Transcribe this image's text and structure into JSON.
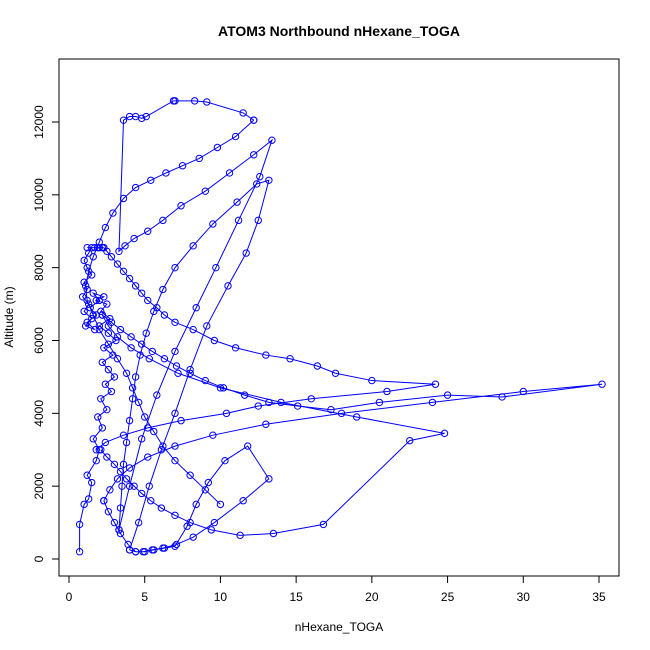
{
  "chart_data": {
    "type": "line",
    "title": "ATOM3 Northbound nHexane_TOGA",
    "xlabel": "nHexane_TOGA",
    "ylabel": "Altitude (m)",
    "xlim": [
      0,
      36
    ],
    "ylim": [
      0,
      12600
    ],
    "x_ticks": [
      0,
      5,
      10,
      15,
      20,
      25,
      30,
      35
    ],
    "y_ticks": [
      0,
      2000,
      4000,
      6000,
      8000,
      10000,
      12000
    ],
    "grid": false,
    "legend": "none",
    "color": "#0000ff",
    "markers": "open-circle",
    "series": [
      {
        "x": [
          0.7,
          0.7,
          1.0,
          1.3,
          1.5,
          1.2,
          1.8,
          2.0,
          1.6,
          2.2,
          1.9,
          2.5,
          2.1,
          2.8,
          2.4,
          3.0,
          2.6,
          2.2,
          2.9,
          2.3,
          3.1,
          2.6,
          2.0,
          2.7,
          2.1,
          2.5,
          1.8,
          2.3,
          1.6,
          2.0,
          1.4,
          1.8,
          1.2,
          1.7,
          1.1,
          1.5,
          1.0,
          1.3,
          0.9,
          1.2,
          1.0,
          1.5,
          1.2,
          1.0,
          1.3,
          1.5,
          1.2,
          1.7,
          1.9,
          2.2,
          2.0,
          2.3
        ],
        "y": [
          200,
          950,
          1500,
          1650,
          2100,
          2300,
          2700,
          3000,
          3300,
          3600,
          3900,
          4100,
          4400,
          4600,
          4800,
          5000,
          5200,
          5400,
          5600,
          5800,
          6000,
          6200,
          6400,
          6600,
          6800,
          7000,
          7100,
          7200,
          7300,
          7100,
          6900,
          6700,
          6500,
          6300,
          6400,
          6600,
          6800,
          7000,
          7200,
          7400,
          7600,
          7800,
          8000,
          8200,
          8400,
          8550,
          8550,
          8550,
          8550,
          8550,
          8550,
          8550
        ]
      },
      {
        "x": [
          2.3,
          2.5,
          2.8,
          3.2,
          3.6,
          4.0,
          4.4,
          4.8,
          5.2,
          5.8,
          6.3,
          7.0,
          8.2,
          9.6,
          11.0,
          13.0,
          14.6,
          16.4,
          17.6,
          20.0,
          24.2,
          21.0,
          16.0,
          12.5,
          10.4,
          7.4,
          5.2,
          3.6,
          2.4,
          1.8
        ],
        "y": [
          8550,
          8450,
          8300,
          8100,
          7900,
          7700,
          7500,
          7300,
          7100,
          6900,
          6700,
          6500,
          6300,
          6000,
          5800,
          5600,
          5500,
          5300,
          5100,
          4900,
          4800,
          4600,
          4400,
          4200,
          4000,
          3800,
          3600,
          3400,
          3200,
          3000
        ]
      },
      {
        "x": [
          2.1,
          2.5,
          3.0,
          3.4,
          3.8,
          4.3,
          4.8,
          5.4,
          6.1,
          7.0,
          8.0,
          9.4,
          11.3,
          13.5,
          16.8,
          22.5,
          24.8,
          19.0,
          14.0,
          10.0,
          7.2,
          5.3,
          4.1,
          3.2,
          2.6,
          2.2
        ],
        "y": [
          3000,
          2800,
          2600,
          2400,
          2200,
          2000,
          1800,
          1600,
          1400,
          1200,
          1000,
          800,
          650,
          700,
          950,
          3250,
          3450,
          3900,
          4300,
          4700,
          5100,
          5500,
          5800,
          6100,
          6400,
          6700
        ]
      },
      {
        "x": [
          2.2,
          2.8,
          3.4,
          4.1,
          4.8,
          5.5,
          6.3,
          7.1,
          8.0,
          9.0,
          10.2,
          11.6,
          13.2,
          15.1,
          17.3,
          20.5,
          25.0,
          28.6,
          35.2,
          30.0,
          24.0,
          18.0,
          13.0,
          9.5,
          7.0,
          5.2,
          4.0,
          3.2,
          2.7,
          2.3
        ],
        "y": [
          6700,
          6500,
          6300,
          6100,
          5900,
          5700,
          5500,
          5300,
          5100,
          4900,
          4700,
          4500,
          4300,
          4200,
          4100,
          4300,
          4500,
          4450,
          4800,
          4600,
          4300,
          4000,
          3700,
          3400,
          3100,
          2800,
          2500,
          2200,
          1900,
          1600
        ]
      },
      {
        "x": [
          2.3,
          2.6,
          3.0,
          3.4,
          3.9,
          4.4,
          5.0,
          5.6,
          6.3,
          7.0,
          7.8,
          8.4,
          9.2,
          10.3,
          11.8,
          13.2,
          11.5,
          9.6,
          8.2,
          7.1,
          6.2,
          5.5,
          4.9,
          4.4,
          4.0
        ],
        "y": [
          1600,
          1300,
          1000,
          700,
          400,
          200,
          200,
          250,
          300,
          350,
          900,
          1500,
          2100,
          2700,
          3100,
          2200,
          1600,
          1000,
          600,
          400,
          300,
          250,
          200,
          200,
          250
        ]
      },
      {
        "x": [
          4.0,
          4.6,
          5.3,
          6.1,
          7.0,
          8.0,
          9.1,
          10.5,
          11.7,
          12.5,
          13.2,
          12.4,
          11.1,
          9.5,
          8.2,
          7.0,
          6.2,
          5.6,
          5.1,
          4.7,
          4.4,
          4.2,
          4.0,
          3.8,
          3.6,
          3.5,
          3.4,
          3.3
        ],
        "y": [
          250,
          1000,
          2000,
          3000,
          4000,
          5200,
          6400,
          7500,
          8400,
          9300,
          10400,
          10300,
          9800,
          9200,
          8600,
          8000,
          7400,
          6800,
          6200,
          5600,
          5000,
          4400,
          3800,
          3200,
          2600,
          2000,
          1400,
          800
        ]
      },
      {
        "x": [
          3.3,
          4.0,
          4.8,
          5.8,
          7.0,
          8.4,
          9.7,
          11.2,
          12.6,
          13.4,
          12.2,
          10.6,
          9.0,
          7.4,
          6.2,
          5.2,
          4.3,
          3.7,
          3.3,
          3.6,
          4.0,
          4.4,
          4.8,
          5.1,
          6.9,
          7.0,
          8.3,
          9.1,
          11.5,
          12.2
        ],
        "y": [
          800,
          2000,
          3300,
          4500,
          5700,
          6900,
          8000,
          9300,
          10500,
          11500,
          11100,
          10600,
          10100,
          9700,
          9300,
          9000,
          8800,
          8600,
          8450,
          12050,
          12150,
          12150,
          12100,
          12150,
          12580,
          12580,
          12580,
          12550,
          12250,
          12050
        ]
      },
      {
        "x": [
          12.2,
          11.0,
          9.8,
          8.6,
          7.5,
          6.4,
          5.4,
          4.4,
          3.6,
          2.9,
          2.4,
          2.0,
          1.6,
          1.3,
          1.1,
          1.2,
          1.6,
          2.0,
          2.6,
          3.2,
          3.8,
          4.2,
          4.6,
          5.0,
          5.6,
          6.2,
          7.0,
          8.0,
          9.0,
          10.0
        ],
        "y": [
          12050,
          11600,
          11300,
          11000,
          10800,
          10600,
          10400,
          10200,
          9900,
          9500,
          9100,
          8700,
          8300,
          7900,
          7500,
          7100,
          6700,
          6300,
          5900,
          5500,
          5100,
          4700,
          4300,
          3900,
          3500,
          3100,
          2700,
          2300,
          1900,
          1500
        ]
      }
    ]
  }
}
